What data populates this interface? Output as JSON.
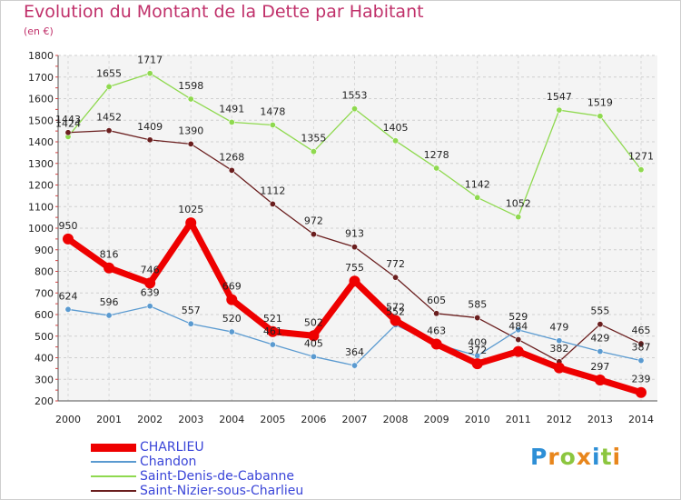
{
  "chart_data": {
    "type": "line",
    "title": "Evolution du Montant de la Dette par Habitant",
    "subtitle": "(en €)",
    "categories": [
      "2000",
      "2001",
      "2002",
      "2003",
      "2004",
      "2005",
      "2006",
      "2007",
      "2008",
      "2009",
      "2010",
      "2011",
      "2012",
      "2013",
      "2014"
    ],
    "ylim": [
      200,
      1800
    ],
    "yticks": [
      200,
      300,
      400,
      500,
      600,
      700,
      800,
      900,
      1000,
      1100,
      1200,
      1300,
      1400,
      1500,
      1600,
      1700,
      1800
    ],
    "grid": true,
    "legend_position": "bottom-left",
    "series": [
      {
        "name": "CHARLIEU",
        "color": "#ee0000",
        "values": [
          950,
          816,
          746,
          1025,
          669,
          521,
          502,
          755,
          572,
          463,
          372,
          429,
          353,
          297,
          239
        ],
        "labels": [
          "950",
          "816",
          "746",
          "1025",
          "669",
          "521",
          "502",
          "755",
          "572",
          "",
          "372",
          "",
          "",
          "297",
          "239"
        ]
      },
      {
        "name": "Chandon",
        "color": "#5a9ad0",
        "values": [
          624,
          596,
          639,
          557,
          520,
          461,
          405,
          364,
          552,
          463,
          409,
          529,
          479,
          429,
          387
        ],
        "labels": [
          "624",
          "596",
          "639",
          "557",
          "520",
          "461",
          "405",
          "364",
          "552",
          "463",
          "409",
          "529",
          "479",
          "429",
          "387"
        ]
      },
      {
        "name": "Saint-Denis-de-Cabanne",
        "color": "#8fd94f",
        "values": [
          1424,
          1655,
          1717,
          1598,
          1491,
          1478,
          1355,
          1553,
          1405,
          1278,
          1142,
          1052,
          1547,
          1519,
          1271
        ],
        "labels": [
          "1424",
          "1655",
          "1717",
          "1598",
          "1491",
          "1478",
          "1355",
          "1553",
          "1405",
          "1278",
          "1142",
          "1052",
          "1547",
          "1519",
          "1271"
        ]
      },
      {
        "name": "Saint-Nizier-sous-Charlieu",
        "color": "#6a1e1e",
        "values": [
          1443,
          1452,
          1409,
          1390,
          1268,
          1112,
          972,
          913,
          772,
          605,
          585,
          484,
          382,
          555,
          465
        ],
        "labels": [
          "1443",
          "1452",
          "1409",
          "1390",
          "1268",
          "1112",
          "972",
          "913",
          "772",
          "605",
          "585",
          "484",
          "382",
          "555",
          "465"
        ]
      }
    ]
  },
  "branding": {
    "logo_text": "Proxiti"
  }
}
